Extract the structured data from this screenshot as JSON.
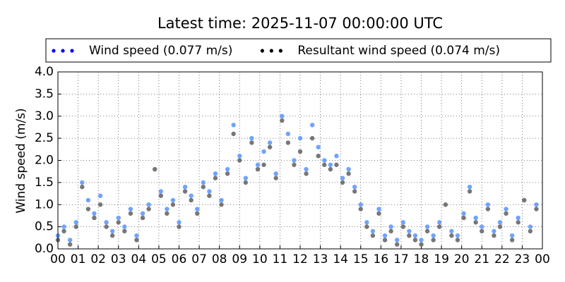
{
  "chart_data": {
    "type": "scatter",
    "title": "Latest time: 2025-11-07 00:00:00 UTC",
    "y_label": "Wind speed (m/s)",
    "x": [
      0,
      0.3,
      0.6,
      0.9,
      1.2,
      1.5,
      1.8,
      2.1,
      2.4,
      2.7,
      3,
      3.3,
      3.6,
      3.9,
      4.2,
      4.5,
      4.8,
      5.1,
      5.4,
      5.7,
      6,
      6.3,
      6.6,
      6.9,
      7.2,
      7.5,
      7.8,
      8.1,
      8.4,
      8.7,
      9,
      9.3,
      9.6,
      9.9,
      10.2,
      10.5,
      10.8,
      11.1,
      11.4,
      11.7,
      12,
      12.3,
      12.6,
      12.9,
      13.2,
      13.5,
      13.8,
      14.1,
      14.4,
      14.7,
      15,
      15.3,
      15.6,
      15.9,
      16.2,
      16.5,
      16.8,
      17.1,
      17.4,
      17.7,
      18,
      18.3,
      18.6,
      18.9,
      19.2,
      19.5,
      19.8,
      20.1,
      20.4,
      20.7,
      21,
      21.3,
      21.6,
      21.9,
      22.2,
      22.5,
      22.8,
      23.1,
      23.4,
      23.7
    ],
    "series": [
      {
        "name": "Wind speed (0.077 m/s)",
        "color": "#6fa3ff",
        "legend_color": "#0000ff",
        "values": [
          0.3,
          0.5,
          0.2,
          0.6,
          1.5,
          1.1,
          0.8,
          1.2,
          0.6,
          0.4,
          0.7,
          0.5,
          0.9,
          0.3,
          0.8,
          1.0,
          1.8,
          1.3,
          0.9,
          1.1,
          0.6,
          1.4,
          1.2,
          0.9,
          1.5,
          1.3,
          1.7,
          1.1,
          1.8,
          2.8,
          2.1,
          1.6,
          2.5,
          1.9,
          2.2,
          2.4,
          1.7,
          3.0,
          2.6,
          2.0,
          2.5,
          1.8,
          2.8,
          2.3,
          2.0,
          1.9,
          2.1,
          1.6,
          1.8,
          1.4,
          1.0,
          0.6,
          0.4,
          0.9,
          0.3,
          0.5,
          0.2,
          0.6,
          0.4,
          0.3,
          0.2,
          0.5,
          0.3,
          0.6,
          1.0,
          0.4,
          0.3,
          0.8,
          1.4,
          0.7,
          0.5,
          1.0,
          0.4,
          0.6,
          0.9,
          0.3,
          0.7,
          1.1,
          0.5,
          1.0
        ]
      },
      {
        "name": "Resultant wind speed (0.074 m/s)",
        "color": "#777777",
        "legend_color": "#000000",
        "values": [
          0.2,
          0.4,
          0.1,
          0.5,
          1.4,
          0.9,
          0.7,
          1.0,
          0.5,
          0.3,
          0.6,
          0.4,
          0.8,
          0.2,
          0.7,
          0.9,
          1.8,
          1.2,
          0.8,
          1.0,
          0.5,
          1.3,
          1.1,
          0.8,
          1.4,
          1.2,
          1.6,
          1.0,
          1.7,
          2.6,
          2.0,
          1.5,
          2.4,
          1.8,
          1.9,
          2.3,
          1.6,
          2.9,
          2.4,
          1.9,
          2.2,
          1.7,
          2.5,
          2.1,
          1.9,
          1.8,
          1.9,
          1.5,
          1.7,
          1.3,
          0.9,
          0.5,
          0.3,
          0.8,
          0.2,
          0.4,
          0.1,
          0.5,
          0.3,
          0.2,
          0.1,
          0.4,
          0.2,
          0.5,
          1.0,
          0.3,
          0.2,
          0.7,
          1.3,
          0.6,
          0.4,
          0.9,
          0.3,
          0.5,
          0.8,
          0.2,
          0.6,
          1.1,
          0.4,
          0.9
        ]
      }
    ],
    "xlim": [
      0,
      24
    ],
    "xticks": [
      {
        "value": 0,
        "label": "00"
      },
      {
        "value": 1,
        "label": "01"
      },
      {
        "value": 2,
        "label": "02"
      },
      {
        "value": 3,
        "label": "03"
      },
      {
        "value": 4,
        "label": "04"
      },
      {
        "value": 5,
        "label": "05"
      },
      {
        "value": 6,
        "label": "06"
      },
      {
        "value": 7,
        "label": "07"
      },
      {
        "value": 8,
        "label": "08"
      },
      {
        "value": 9,
        "label": "09"
      },
      {
        "value": 10,
        "label": "10"
      },
      {
        "value": 11,
        "label": "11"
      },
      {
        "value": 12,
        "label": "12"
      },
      {
        "value": 13,
        "label": "13"
      },
      {
        "value": 14,
        "label": "14"
      },
      {
        "value": 15,
        "label": "15"
      },
      {
        "value": 16,
        "label": "16"
      },
      {
        "value": 17,
        "label": "17"
      },
      {
        "value": 18,
        "label": "18"
      },
      {
        "value": 19,
        "label": "19"
      },
      {
        "value": 20,
        "label": "20"
      },
      {
        "value": 21,
        "label": "21"
      },
      {
        "value": 22,
        "label": "22"
      },
      {
        "value": 23,
        "label": "23"
      },
      {
        "value": 24,
        "label": "00"
      }
    ],
    "ylim": [
      0,
      4
    ],
    "yticks": [
      {
        "value": 0,
        "label": "0.0"
      },
      {
        "value": 0.5,
        "label": "0.5"
      },
      {
        "value": 1,
        "label": "1.0"
      },
      {
        "value": 1.5,
        "label": "1.5"
      },
      {
        "value": 2,
        "label": "2.0"
      },
      {
        "value": 2.5,
        "label": "2.5"
      },
      {
        "value": 3,
        "label": "3.0"
      },
      {
        "value": 3.5,
        "label": "3.5"
      },
      {
        "value": 4,
        "label": "4.0"
      }
    ],
    "grid": true
  }
}
